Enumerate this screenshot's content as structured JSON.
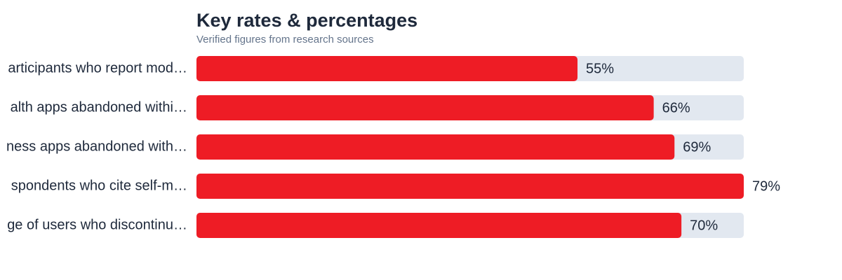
{
  "chart_data": {
    "type": "bar",
    "orientation": "horizontal",
    "title": "Key rates & percentages",
    "subtitle": "Verified figures from research sources",
    "categories": [
      "articipants who report mod…",
      "alth apps abandoned withi…",
      "ness apps abandoned with…",
      "spondents who cite self-m…",
      "ge of users who discontinu…"
    ],
    "values": [
      55,
      66,
      69,
      79,
      70
    ],
    "value_labels": [
      "55%",
      "66%",
      "69%",
      "79%",
      "70%"
    ],
    "color": "#ee1c25",
    "track_color": "#e2e8f0",
    "xlim": [
      0,
      79
    ]
  }
}
